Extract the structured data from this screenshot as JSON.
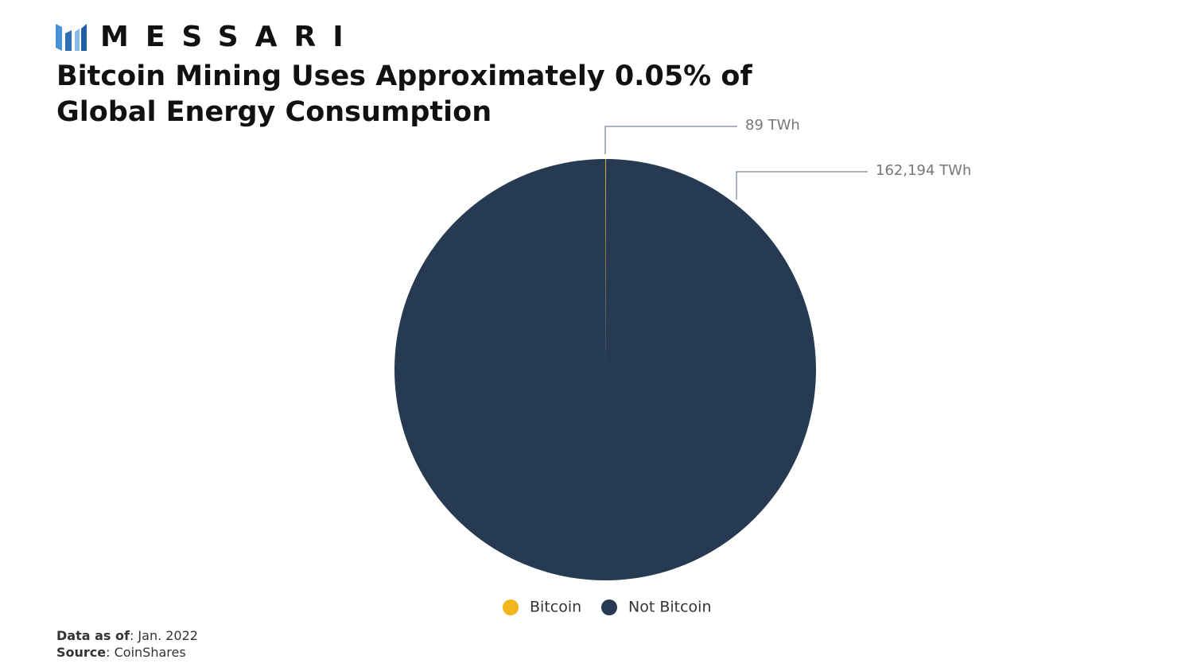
{
  "brand": "MESSARI",
  "chart_data": {
    "type": "pie",
    "title": "Bitcoin Mining Uses Approximately 0.05% of Global Energy Consumption",
    "categories": [
      "Bitcoin",
      "Not Bitcoin"
    ],
    "values": [
      89,
      162194
    ],
    "value_labels": [
      "89 TWh",
      "162,194 TWh"
    ],
    "colors": [
      "#f2b51c",
      "#263a52"
    ],
    "legend": "bottom"
  },
  "footer": {
    "date_label": "Data as of",
    "date": ": Jan. 2022",
    "source_label": "Source",
    "source": ": CoinShares"
  }
}
